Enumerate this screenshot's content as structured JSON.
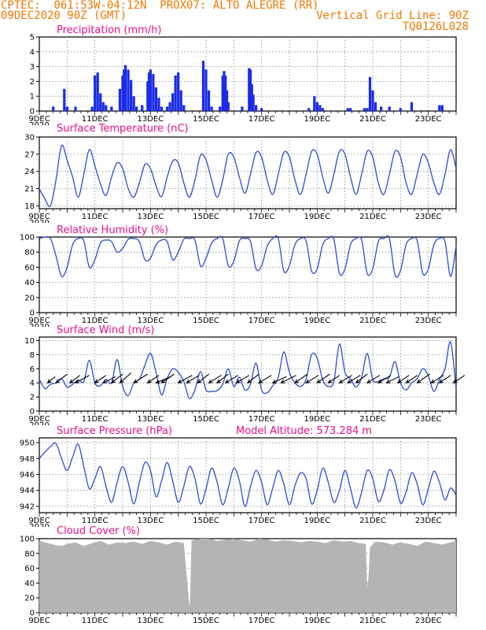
{
  "header": {
    "line1": "CPTEC:  061:53W-04:12N  PROX07: ALTO ALEGRE (RR)",
    "line2_left": "09DEC2020 90Z (GMT)",
    "line2_right": "Vertical Grid Line: 90Z",
    "line3_right": "TQ0126L028"
  },
  "colors": {
    "header": "#f07800",
    "title": "#e8108a",
    "line": "#2a4dd8",
    "bar": "#1a2ce8",
    "cloud": "#b4b4b4"
  },
  "x_dates": [
    "9DEC",
    "11DEC",
    "13DEC",
    "15DEC",
    "17DEC",
    "19DEC",
    "21DEC",
    "23DEC"
  ],
  "x_cut_label": "2020",
  "chart_data": [
    {
      "id": "precipitation",
      "type": "bar",
      "title": "Precipitation (mm/h)",
      "xlabel": "",
      "ylabel": "mm/h",
      "xlim_days": [
        9,
        24
      ],
      "ylim": [
        0,
        5
      ],
      "yticks": [
        0,
        1,
        2,
        3,
        4,
        5
      ],
      "x": [
        9.5,
        9.9,
        10.0,
        10.3,
        10.9,
        11.0,
        11.1,
        11.2,
        11.3,
        11.4,
        11.6,
        11.9,
        12.0,
        12.05,
        12.1,
        12.2,
        12.3,
        12.4,
        12.5,
        12.7,
        12.9,
        12.95,
        13.0,
        13.1,
        13.2,
        13.3,
        13.4,
        13.6,
        13.7,
        13.8,
        13.9,
        14.0,
        14.1,
        14.2,
        14.9,
        15.0,
        15.1,
        15.2,
        15.5,
        15.6,
        15.65,
        15.7,
        15.75,
        15.8,
        16.3,
        16.55,
        16.6,
        16.65,
        16.7,
        16.8,
        17.0,
        18.7,
        18.9,
        19.0,
        19.1,
        19.2,
        20.1,
        20.2,
        20.7,
        20.8,
        20.9,
        21.0,
        21.1,
        21.3,
        21.6,
        22.0,
        22.4,
        23.4,
        23.5
      ],
      "values": [
        0.3,
        1.5,
        0.3,
        0.3,
        0.3,
        2.4,
        2.6,
        1.2,
        0.6,
        0.4,
        0.3,
        1.5,
        2.4,
        2.8,
        3.1,
        2.8,
        2.1,
        1.0,
        0.3,
        0.4,
        2.0,
        2.6,
        2.8,
        2.5,
        1.6,
        0.9,
        0.3,
        0.3,
        0.6,
        1.2,
        2.4,
        2.6,
        1.4,
        0.4,
        3.4,
        2.8,
        1.4,
        0.3,
        0.3,
        2.4,
        2.7,
        2.4,
        1.4,
        0.6,
        0.3,
        2.9,
        2.8,
        1.8,
        1.1,
        0.4,
        0.2,
        0.2,
        1.0,
        0.6,
        0.4,
        0.2,
        0.2,
        0.2,
        0.2,
        0.2,
        2.3,
        1.4,
        0.6,
        0.3,
        0.3,
        0.2,
        0.6,
        0.4,
        0.4
      ]
    },
    {
      "id": "temperature",
      "type": "line",
      "title": "Surface Temperature (nC)",
      "ylim": [
        17.5,
        30
      ],
      "yticks": [
        18,
        21,
        24,
        27,
        30
      ],
      "x": [
        9.0,
        9.2,
        9.4,
        9.6,
        9.8,
        10.0,
        10.2,
        10.4,
        10.6,
        10.8,
        11.0,
        11.2,
        11.4,
        11.6,
        11.8,
        12.0,
        12.2,
        12.4,
        12.6,
        12.8,
        13.0,
        13.2,
        13.4,
        13.6,
        13.8,
        14.0,
        14.2,
        14.4,
        14.6,
        14.8,
        15.0,
        15.2,
        15.4,
        15.6,
        15.8,
        16.0,
        16.2,
        16.4,
        16.6,
        16.8,
        17.0,
        17.2,
        17.4,
        17.6,
        17.8,
        18.0,
        18.2,
        18.4,
        18.6,
        18.8,
        19.0,
        19.2,
        19.4,
        19.6,
        19.8,
        20.0,
        20.2,
        20.4,
        20.6,
        20.8,
        21.0,
        21.2,
        21.4,
        21.6,
        21.8,
        22.0,
        22.2,
        22.4,
        22.6,
        22.8,
        23.0,
        23.2,
        23.4,
        23.6,
        23.8,
        24.0
      ],
      "values": [
        21.0,
        19.2,
        18.0,
        22.5,
        28.5,
        26.0,
        23.0,
        19.5,
        23.5,
        27.8,
        25.0,
        21.8,
        19.8,
        23.0,
        25.5,
        24.5,
        21.0,
        19.5,
        22.0,
        25.2,
        24.5,
        21.5,
        19.6,
        23.0,
        25.8,
        25.5,
        22.0,
        19.5,
        22.5,
        26.8,
        26.0,
        22.5,
        19.5,
        22.5,
        27.0,
        26.5,
        23.0,
        20.2,
        23.5,
        27.3,
        26.5,
        22.5,
        20.0,
        23.5,
        27.3,
        26.5,
        22.5,
        20.0,
        23.5,
        27.5,
        27.0,
        23.0,
        20.2,
        23.5,
        27.5,
        27.0,
        23.0,
        20.0,
        23.5,
        27.5,
        26.5,
        22.0,
        20.0,
        23.5,
        27.5,
        26.5,
        22.0,
        20.0,
        23.5,
        27.0,
        25.5,
        22.0,
        20.0,
        23.5,
        27.8,
        24.5
      ]
    },
    {
      "id": "humidity",
      "type": "line",
      "title": "Relative Humidity (%)",
      "ylim": [
        0,
        100
      ],
      "yticks": [
        0,
        20,
        40,
        60,
        80,
        100
      ],
      "x": [
        9.0,
        9.2,
        9.4,
        9.6,
        9.8,
        10.0,
        10.2,
        10.4,
        10.6,
        10.8,
        11.0,
        11.2,
        11.4,
        11.6,
        11.8,
        12.0,
        12.2,
        12.4,
        12.6,
        12.8,
        13.0,
        13.2,
        13.4,
        13.6,
        13.8,
        14.0,
        14.2,
        14.4,
        14.6,
        14.8,
        15.0,
        15.2,
        15.4,
        15.6,
        15.8,
        16.0,
        16.2,
        16.4,
        16.6,
        16.8,
        17.0,
        17.2,
        17.4,
        17.6,
        17.8,
        18.0,
        18.2,
        18.4,
        18.6,
        18.8,
        19.0,
        19.2,
        19.4,
        19.6,
        19.8,
        20.0,
        20.2,
        20.4,
        20.6,
        20.8,
        21.0,
        21.2,
        21.4,
        21.6,
        21.8,
        22.0,
        22.2,
        22.4,
        22.6,
        22.8,
        23.0,
        23.2,
        23.4,
        23.6,
        23.8,
        24.0
      ],
      "values": [
        98,
        100,
        98,
        75,
        48,
        60,
        90,
        98,
        95,
        60,
        70,
        92,
        96,
        94,
        80,
        85,
        97,
        98,
        94,
        70,
        72,
        90,
        96,
        94,
        70,
        80,
        97,
        98,
        96,
        62,
        72,
        92,
        98,
        98,
        62,
        68,
        95,
        98,
        94,
        58,
        62,
        88,
        98,
        98,
        55,
        62,
        90,
        98,
        95,
        55,
        58,
        90,
        98,
        97,
        52,
        58,
        90,
        98,
        96,
        52,
        58,
        94,
        98,
        98,
        50,
        56,
        90,
        98,
        95,
        52,
        58,
        90,
        98,
        94,
        48,
        88
      ]
    },
    {
      "id": "wind",
      "type": "line",
      "title": "Surface Wind (m/s)",
      "ylim": [
        0,
        10.5
      ],
      "yticks": [
        0,
        2,
        4,
        6,
        8,
        10
      ],
      "x": [
        9.0,
        9.2,
        9.4,
        9.6,
        9.8,
        10.0,
        10.2,
        10.4,
        10.6,
        10.8,
        11.0,
        11.2,
        11.4,
        11.6,
        11.8,
        12.0,
        12.2,
        12.4,
        12.6,
        12.8,
        13.0,
        13.2,
        13.4,
        13.6,
        13.8,
        14.0,
        14.2,
        14.4,
        14.6,
        14.8,
        15.0,
        15.2,
        15.4,
        15.6,
        15.8,
        16.0,
        16.2,
        16.4,
        16.6,
        16.8,
        17.0,
        17.2,
        17.4,
        17.6,
        17.8,
        18.0,
        18.2,
        18.4,
        18.6,
        18.8,
        19.0,
        19.2,
        19.4,
        19.6,
        19.8,
        20.0,
        20.2,
        20.4,
        20.6,
        20.8,
        21.0,
        21.2,
        21.4,
        21.6,
        21.8,
        22.0,
        22.2,
        22.4,
        22.6,
        22.8,
        23.0,
        23.2,
        23.4,
        23.6,
        23.8,
        24.0
      ],
      "values": [
        4.5,
        3.2,
        3.8,
        4.0,
        4.6,
        3.4,
        3.8,
        4.4,
        4.2,
        7.2,
        4.0,
        3.6,
        4.5,
        4.0,
        7.3,
        3.5,
        2.2,
        4.0,
        4.5,
        6.5,
        8.2,
        5.5,
        2.3,
        4.6,
        6.0,
        5.5,
        4.2,
        1.8,
        3.0,
        5.6,
        3.0,
        2.8,
        2.9,
        3.8,
        6.0,
        3.5,
        4.8,
        3.0,
        3.8,
        6.8,
        3.0,
        2.6,
        3.6,
        4.8,
        8.4,
        5.5,
        4.0,
        3.5,
        4.5,
        8.0,
        7.5,
        4.4,
        3.5,
        4.2,
        9.5,
        5.5,
        4.6,
        3.4,
        4.8,
        8.2,
        4.5,
        4.2,
        4.6,
        4.8,
        7.0,
        4.0,
        3.0,
        4.0,
        4.6,
        6.0,
        5.0,
        2.8,
        4.5,
        6.0,
        9.8,
        3.2
      ],
      "vector_x": [
        9.3,
        9.6,
        10.1,
        10.3,
        11.0,
        11.3,
        11.6,
        11.9,
        12.4,
        12.9,
        13.2,
        13.4,
        14.0,
        14.3,
        14.7,
        15.1,
        15.4,
        15.7,
        16.1,
        16.5,
        16.9,
        17.4,
        17.7,
        18.2,
        18.6,
        19.0,
        19.4,
        19.8,
        20.1,
        20.4,
        20.8,
        21.2,
        21.5,
        21.9,
        22.2,
        22.6,
        23.1,
        23.4,
        23.9
      ],
      "vector_dx": [
        0.6,
        0.9,
        0.8,
        1.1,
        0.9,
        1.0,
        0.9,
        0.9,
        1.1,
        0.9,
        1.2,
        1.0,
        1.1,
        1.0,
        0.9,
        1.0,
        0.9,
        1.0,
        1.0,
        0.9,
        1.0,
        1.1,
        1.2,
        1.0,
        1.0,
        1.0,
        0.9,
        1.0,
        1.0,
        0.9,
        1.0,
        1.0,
        1.0,
        0.9,
        0.9,
        1.0,
        1.0,
        0.9,
        0.9
      ],
      "vector_dy": [
        0.5,
        0.7,
        0.6,
        0.6,
        0.6,
        0.5,
        0.7,
        0.8,
        0.7,
        0.6,
        0.5,
        0.7,
        0.6,
        0.6,
        0.7,
        0.6,
        0.7,
        0.6,
        0.6,
        0.7,
        0.6,
        0.5,
        0.6,
        0.7,
        0.6,
        0.7,
        0.6,
        0.6,
        0.6,
        0.7,
        0.6,
        0.6,
        0.5,
        0.6,
        0.6,
        0.7,
        0.6,
        0.6,
        0.6
      ]
    },
    {
      "id": "pressure",
      "type": "line",
      "title": "Surface Pressure (hPa)",
      "annotation": "Model Altitude: 573.284  m",
      "ylim": [
        941.2,
        950.6
      ],
      "yticks": [
        942,
        944,
        946,
        948,
        950
      ],
      "x": [
        9.0,
        9.2,
        9.4,
        9.6,
        9.8,
        10.0,
        10.2,
        10.4,
        10.6,
        10.8,
        11.0,
        11.2,
        11.4,
        11.6,
        11.8,
        12.0,
        12.2,
        12.4,
        12.6,
        12.8,
        13.0,
        13.2,
        13.4,
        13.6,
        13.8,
        14.0,
        14.2,
        14.4,
        14.6,
        14.8,
        15.0,
        15.2,
        15.4,
        15.6,
        15.8,
        16.0,
        16.2,
        16.4,
        16.6,
        16.8,
        17.0,
        17.2,
        17.4,
        17.6,
        17.8,
        18.0,
        18.2,
        18.4,
        18.6,
        18.8,
        19.0,
        19.2,
        19.4,
        19.6,
        19.8,
        20.0,
        20.2,
        20.4,
        20.6,
        20.8,
        21.0,
        21.2,
        21.4,
        21.6,
        21.8,
        22.0,
        22.2,
        22.4,
        22.6,
        22.8,
        23.0,
        23.2,
        23.4,
        23.6,
        23.8,
        24.0
      ],
      "values": [
        948.0,
        948.8,
        949.5,
        949.9,
        948.0,
        946.5,
        948.2,
        949.8,
        947.0,
        944.2,
        945.5,
        947.0,
        944.5,
        942.5,
        945.0,
        947.0,
        945.0,
        942.3,
        945.0,
        947.5,
        946.5,
        943.2,
        945.2,
        947.5,
        945.2,
        942.5,
        944.5,
        947.0,
        945.5,
        942.3,
        944.2,
        946.8,
        945.0,
        942.2,
        944.3,
        946.8,
        945.2,
        942.0,
        944.5,
        946.5,
        945.0,
        942.2,
        944.3,
        946.5,
        944.8,
        942.2,
        944.6,
        946.2,
        945.5,
        942.3,
        944.0,
        946.8,
        945.0,
        942.5,
        944.0,
        946.5,
        944.2,
        941.8,
        943.8,
        946.5,
        945.5,
        942.6,
        944.0,
        946.6,
        945.2,
        942.4,
        943.8,
        946.2,
        944.8,
        942.2,
        944.2,
        946.4,
        945.0,
        942.8,
        944.3,
        943.4
      ]
    },
    {
      "id": "cloud",
      "type": "area",
      "title": "Cloud Cover (%)",
      "ylim": [
        0,
        100
      ],
      "yticks": [
        0,
        20,
        40,
        60,
        80,
        100
      ],
      "x": [
        9.0,
        9.1,
        9.3,
        9.5,
        9.8,
        10.0,
        10.3,
        10.6,
        10.9,
        11.2,
        11.5,
        11.8,
        12.1,
        12.4,
        12.7,
        13.0,
        13.3,
        13.6,
        13.9,
        14.2,
        14.4,
        14.42,
        14.48,
        14.5,
        14.8,
        15.1,
        15.4,
        15.7,
        16.0,
        16.3,
        16.6,
        16.9,
        17.2,
        17.5,
        17.8,
        18.1,
        18.4,
        18.7,
        19.0,
        19.3,
        19.6,
        19.9,
        20.2,
        20.5,
        20.75,
        20.8,
        20.85,
        20.9,
        21.1,
        21.4,
        21.7,
        22.0,
        22.3,
        22.6,
        22.9,
        23.2,
        23.5,
        23.8,
        24.0
      ],
      "values": [
        98,
        96,
        94,
        92,
        90,
        93,
        95,
        90,
        94,
        97,
        92,
        95,
        94,
        96,
        93,
        97,
        95,
        92,
        96,
        94,
        10,
        10,
        98,
        98,
        100,
        100,
        97,
        99,
        100,
        98,
        96,
        100,
        99,
        96,
        98,
        97,
        95,
        97,
        96,
        94,
        98,
        96,
        97,
        94,
        93,
        35,
        50,
        88,
        96,
        95,
        92,
        95,
        93,
        90,
        96,
        94,
        92,
        95,
        97
      ]
    }
  ]
}
